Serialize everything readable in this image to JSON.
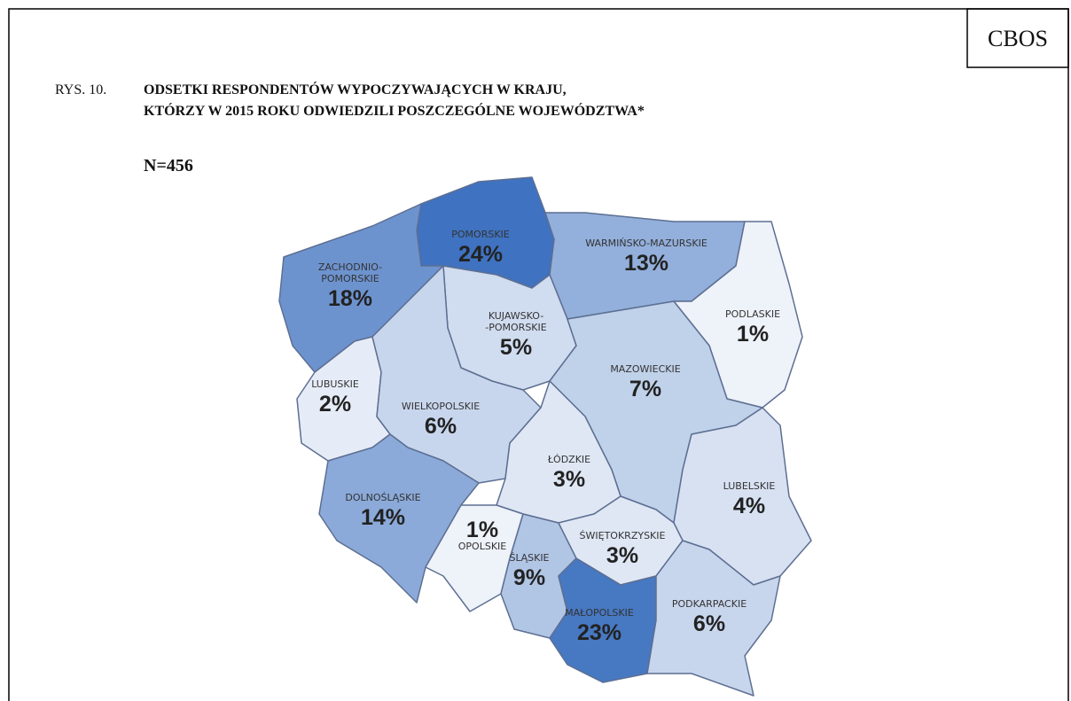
{
  "header": {
    "brand": "CBOS",
    "figure_number": "RYS. 10.",
    "title_lines": [
      "ODSETKI RESPONDENTÓW WYPOCZYWAJĄCYCH W KRAJU,",
      "KTÓRZY W 2015 ROKU ODWIEDZILI POSZCZEGÓLNE WOJEWÓDZTWA*"
    ],
    "sample": "N=456"
  },
  "regions": [
    {
      "name_lines": [
        "POMORSKIE"
      ],
      "value": 24,
      "value_label": "24%"
    },
    {
      "name_lines": [
        "ZACHODNIO-",
        "POMORSKIE"
      ],
      "value": 18,
      "value_label": "18%"
    },
    {
      "name_lines": [
        "WARMIŃSKO-MAZURSKIE"
      ],
      "value": 13,
      "value_label": "13%"
    },
    {
      "name_lines": [
        "PODLASKIE"
      ],
      "value": 1,
      "value_label": "1%"
    },
    {
      "name_lines": [
        "KUJAWSKO-",
        "-POMORSKIE"
      ],
      "value": 5,
      "value_label": "5%"
    },
    {
      "name_lines": [
        "LUBUSKIE"
      ],
      "value": 2,
      "value_label": "2%"
    },
    {
      "name_lines": [
        "WIELKOPOLSKIE"
      ],
      "value": 6,
      "value_label": "6%"
    },
    {
      "name_lines": [
        "MAZOWIECKIE"
      ],
      "value": 7,
      "value_label": "7%"
    },
    {
      "name_lines": [
        "ŁÓDZKIE"
      ],
      "value": 3,
      "value_label": "3%"
    },
    {
      "name_lines": [
        "LUBELSKIE"
      ],
      "value": 4,
      "value_label": "4%"
    },
    {
      "name_lines": [
        "DOLNOŚLĄSKIE"
      ],
      "value": 14,
      "value_label": "14%"
    },
    {
      "name_lines": [
        "OPOLSKIE"
      ],
      "value": 1,
      "value_label": "1%"
    },
    {
      "name_lines": [
        "ŚLĄSKIE"
      ],
      "value": 9,
      "value_label": "9%"
    },
    {
      "name_lines": [
        "ŚWIĘTOKRZYSKIE"
      ],
      "value": 3,
      "value_label": "3%"
    },
    {
      "name_lines": [
        "MAŁOPOLSKIE"
      ],
      "value": 23,
      "value_label": "23%"
    },
    {
      "name_lines": [
        "PODKARPACKIE"
      ],
      "value": 6,
      "value_label": "6%"
    }
  ]
}
